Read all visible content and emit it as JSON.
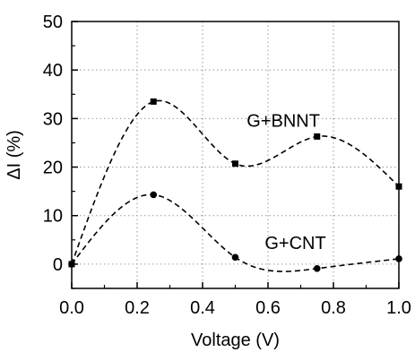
{
  "chart_data": {
    "type": "scatter",
    "title": "",
    "xlabel": "Voltage (V)",
    "ylabel": "ΔI (%)",
    "xlim": [
      0.0,
      1.0
    ],
    "ylim": [
      -5,
      50
    ],
    "grid": true,
    "grid_style": "dotted",
    "legend": "none; series labeled directly on plot",
    "x_ticks": [
      "0.0",
      "0.2",
      "0.4",
      "0.6",
      "0.8",
      "1.0"
    ],
    "y_ticks": [
      "0",
      "10",
      "20",
      "30",
      "40",
      "50"
    ],
    "series": [
      {
        "name": "G+BNNT",
        "marker": "square",
        "line": "dashed smooth curve",
        "x": [
          0.0,
          0.25,
          0.5,
          0.75,
          1.0
        ],
        "y": [
          0,
          33.5,
          20.7,
          26.3,
          16.0
        ]
      },
      {
        "name": "G+CNT",
        "marker": "circle",
        "line": "dashed smooth curve",
        "x": [
          0.0,
          0.25,
          0.5,
          0.75,
          1.0
        ],
        "y": [
          0,
          14.3,
          1.4,
          -0.9,
          1.1
        ]
      }
    ]
  }
}
